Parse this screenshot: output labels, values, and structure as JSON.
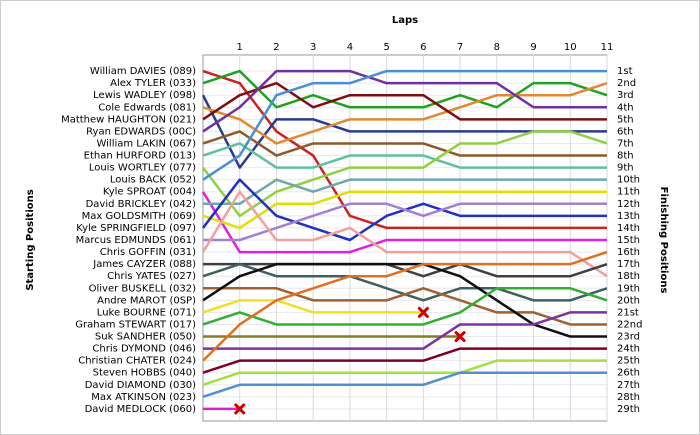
{
  "chart_data": {
    "type": "line",
    "title": "Laps",
    "y_label": "Starting Positions",
    "y2_label": "Finishing Positions",
    "x": [
      0,
      1,
      2,
      3,
      4,
      5,
      6,
      7,
      8,
      9,
      10,
      11
    ],
    "xlim": [
      0,
      11
    ],
    "xticks": [
      1,
      2,
      3,
      4,
      5,
      6,
      7,
      8,
      9,
      10,
      11
    ],
    "ylim": [
      0,
      30
    ],
    "y_inverted": true,
    "grid": true,
    "yticks": [
      {
        "value": 1,
        "label": "1st"
      },
      {
        "value": 2,
        "label": "2nd"
      },
      {
        "value": 3,
        "label": "3rd"
      },
      {
        "value": 4,
        "label": "4th"
      },
      {
        "value": 5,
        "label": "5th"
      },
      {
        "value": 6,
        "label": "6th"
      },
      {
        "value": 7,
        "label": "7th"
      },
      {
        "value": 8,
        "label": "8th"
      },
      {
        "value": 9,
        "label": "9th"
      },
      {
        "value": 10,
        "label": "10th"
      },
      {
        "value": 11,
        "label": "11th"
      },
      {
        "value": 12,
        "label": "12th"
      },
      {
        "value": 13,
        "label": "13th"
      },
      {
        "value": 14,
        "label": "14th"
      },
      {
        "value": 15,
        "label": "15th"
      },
      {
        "value": 16,
        "label": "16th"
      },
      {
        "value": 17,
        "label": "17th"
      },
      {
        "value": 18,
        "label": "18th"
      },
      {
        "value": 19,
        "label": "19th"
      },
      {
        "value": 20,
        "label": "20th"
      },
      {
        "value": 21,
        "label": "21st"
      },
      {
        "value": 22,
        "label": "22nd"
      },
      {
        "value": 23,
        "label": "23rd"
      },
      {
        "value": 24,
        "label": "24th"
      },
      {
        "value": 25,
        "label": "25th"
      },
      {
        "value": 26,
        "label": "26th"
      },
      {
        "value": 27,
        "label": "27th"
      },
      {
        "value": 28,
        "label": "28th"
      },
      {
        "value": 29,
        "label": "29th"
      }
    ],
    "series": [
      {
        "name": "William DAVIES (089)",
        "color": "#cc2222",
        "values": [
          1,
          2,
          6,
          8,
          13,
          14,
          14,
          14,
          14,
          14,
          14,
          14
        ]
      },
      {
        "name": "Alex TYLER (033)",
        "color": "#22a022",
        "values": [
          2,
          1,
          4,
          3,
          4,
          4,
          4,
          3,
          4,
          2,
          2,
          3
        ]
      },
      {
        "name": "Lewis WADLEY (098)",
        "color": "#2b3a8f",
        "values": [
          3,
          9,
          5,
          5,
          6,
          6,
          6,
          6,
          6,
          6,
          6,
          6
        ]
      },
      {
        "name": "Cole Edwards (081)",
        "color": "#e08a30",
        "values": [
          4,
          5,
          7,
          6,
          5,
          5,
          5,
          4,
          3,
          3,
          3,
          2
        ]
      },
      {
        "name": "Matthew HAUGHTON (021)",
        "color": "#7a1010",
        "values": [
          5,
          3,
          2,
          4,
          3,
          3,
          3,
          5,
          5,
          5,
          5,
          5
        ]
      },
      {
        "name": "Ryan EDWARDS (00C)",
        "color": "#7030a0",
        "values": [
          6,
          4,
          1,
          1,
          1,
          2,
          2,
          2,
          2,
          4,
          4,
          4
        ]
      },
      {
        "name": "William LAKIN (067)",
        "color": "#8b5a2b",
        "values": [
          7,
          6,
          8,
          7,
          7,
          7,
          7,
          8,
          8,
          8,
          8,
          8
        ]
      },
      {
        "name": "Ethan HURFORD (013)",
        "color": "#5fc0a0",
        "values": [
          8,
          7,
          9,
          9,
          8,
          8,
          8,
          9,
          9,
          9,
          9,
          9
        ]
      },
      {
        "name": "Louis WORTLEY (077)",
        "color": "#90d040",
        "values": [
          9,
          13,
          11,
          10,
          9,
          9,
          9,
          7,
          7,
          6,
          6,
          7
        ]
      },
      {
        "name": "Louis BACK (052)",
        "color": "#4a8fd4",
        "values": [
          10,
          8,
          3,
          2,
          2,
          1,
          1,
          1,
          1,
          1,
          1,
          1
        ]
      },
      {
        "name": "Kyle SPROAT (004)",
        "color": "#e020e0",
        "values": [
          11,
          16,
          16,
          16,
          16,
          15,
          15,
          15,
          15,
          15,
          15,
          15
        ]
      },
      {
        "name": "David BRICKLEY (042)",
        "color": "#70a8a8",
        "values": [
          12,
          12,
          10,
          11,
          10,
          10,
          10,
          10,
          10,
          10,
          10,
          10
        ]
      },
      {
        "name": "Max GOLDSMITH (069)",
        "color": "#e0e000",
        "values": [
          13,
          14,
          12,
          12,
          11,
          11,
          11,
          11,
          11,
          11,
          11,
          11
        ]
      },
      {
        "name": "Kyle SPRINGFIELD (097)",
        "color": "#2030c0",
        "values": [
          14,
          10,
          13,
          14,
          15,
          13,
          12,
          13,
          13,
          13,
          13,
          13
        ]
      },
      {
        "name": "Marcus EDMUNDS (061)",
        "color": "#a080d0",
        "values": [
          15,
          15,
          14,
          13,
          12,
          12,
          13,
          12,
          12,
          12,
          12,
          12
        ]
      },
      {
        "name": "Chris GOFFIN (031)",
        "color": "#f0a0a0",
        "values": [
          16,
          11,
          15,
          15,
          14,
          16,
          16,
          16,
          16,
          16,
          16,
          18
        ]
      },
      {
        "name": "James CAYZER (088)",
        "color": "#404040",
        "values": [
          17,
          17,
          17,
          17,
          17,
          17,
          18,
          17,
          18,
          18,
          18,
          17
        ]
      },
      {
        "name": "Chris YATES (027)",
        "color": "#406060",
        "values": [
          18,
          17,
          18,
          18,
          18,
          19,
          20,
          19,
          19,
          20,
          20,
          19
        ]
      },
      {
        "name": "Oliver BUSKELL (032)",
        "color": "#a06030",
        "values": [
          19,
          19,
          19,
          20,
          20,
          20,
          19,
          20,
          21,
          21,
          22,
          22
        ]
      },
      {
        "name": "Andre MAROT (0SP)",
        "color": "#101010",
        "values": [
          20,
          18,
          17,
          17,
          17,
          17,
          17,
          18,
          20,
          22,
          23,
          23
        ]
      },
      {
        "name": "Luke BOURNE (071)",
        "color": "#f0e020",
        "values": [
          21,
          20,
          20,
          21,
          21,
          21,
          21,
          null,
          null,
          null,
          null,
          null
        ],
        "retired": true
      },
      {
        "name": "Graham STEWART (017)",
        "color": "#30b030",
        "values": [
          22,
          21,
          22,
          22,
          22,
          22,
          22,
          21,
          19,
          19,
          19,
          20
        ]
      },
      {
        "name": "Suk SANDHER (050)",
        "color": "#808020",
        "values": [
          23,
          23,
          23,
          23,
          23,
          23,
          23,
          23,
          null,
          null,
          null,
          null
        ],
        "retired": true
      },
      {
        "name": "Chris DYMOND (046)",
        "color": "#8030a0",
        "values": [
          24,
          24,
          24,
          24,
          24,
          24,
          24,
          22,
          22,
          22,
          21,
          21
        ]
      },
      {
        "name": "Christian CHATER (024)",
        "color": "#e07020",
        "values": [
          25,
          22,
          20,
          19,
          18,
          18,
          17,
          17,
          17,
          17,
          17,
          16
        ]
      },
      {
        "name": "Steven HOBBS (040)",
        "color": "#800020",
        "values": [
          26,
          25,
          25,
          25,
          25,
          25,
          25,
          24,
          24,
          24,
          24,
          24
        ]
      },
      {
        "name": "David DIAMOND (030)",
        "color": "#a0e040",
        "values": [
          27,
          26,
          26,
          26,
          26,
          26,
          26,
          26,
          25,
          25,
          25,
          25
        ]
      },
      {
        "name": "Max ATKINSON (023)",
        "color": "#5090d0",
        "values": [
          28,
          27,
          27,
          27,
          27,
          27,
          27,
          26,
          26,
          26,
          26,
          26
        ]
      },
      {
        "name": "David MEDLOCK (060)",
        "color": "#e020c0",
        "values": [
          29,
          29,
          null,
          null,
          null,
          null,
          null,
          null,
          null,
          null,
          null,
          null
        ],
        "retired": true
      }
    ]
  }
}
